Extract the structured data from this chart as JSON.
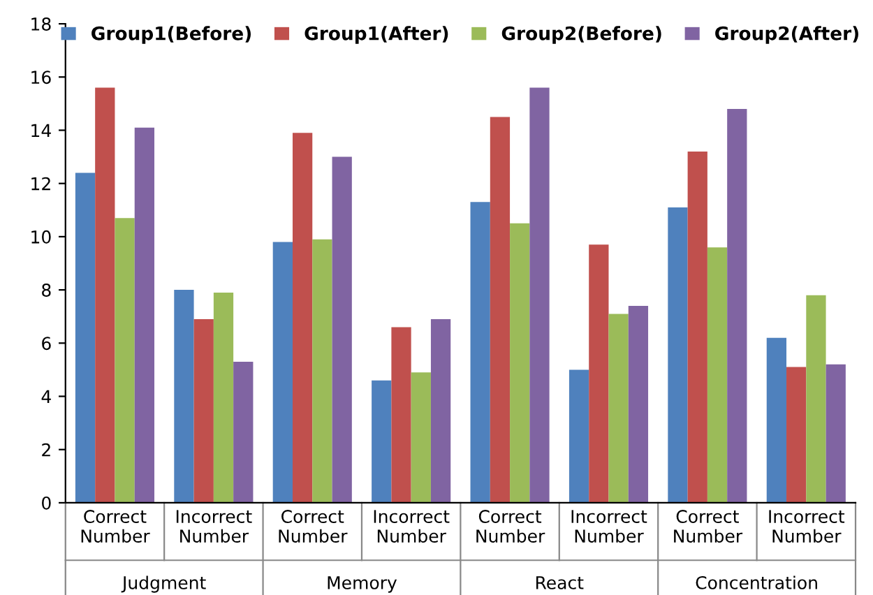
{
  "chart_data": {
    "type": "bar",
    "categories": [
      "Correct\nNumber",
      "Incorrect\nNumber",
      "Correct\nNumber",
      "Incorrect\nNumber",
      "Correct\nNumber",
      "Incorrect\nNumber",
      "Correct\nNumber",
      "Incorrect\nNumber"
    ],
    "annotations": [
      "Judgment",
      "Memory",
      "React",
      "Concentration"
    ],
    "series": [
      {
        "name": "Group1(Before)",
        "color": "#4f81bd",
        "values": [
          12.4,
          8.0,
          9.8,
          4.6,
          11.3,
          5.0,
          11.1,
          6.2
        ]
      },
      {
        "name": "Group1(After)",
        "color": "#c0504d",
        "values": [
          15.6,
          6.9,
          13.9,
          6.6,
          14.5,
          9.7,
          13.2,
          5.1
        ]
      },
      {
        "name": "Group2(Before)",
        "color": "#9bbb59",
        "values": [
          10.7,
          7.9,
          9.9,
          4.9,
          10.5,
          7.1,
          9.6,
          7.8
        ]
      },
      {
        "name": "Group2(After)",
        "color": "#8064a2",
        "values": [
          14.1,
          5.3,
          13.0,
          6.9,
          15.6,
          7.4,
          14.8,
          5.2
        ]
      }
    ],
    "ylim": [
      0,
      18
    ],
    "yticks": [
      0,
      2,
      4,
      6,
      8,
      10,
      12,
      14,
      16,
      18
    ],
    "grid": false,
    "legend": "top"
  }
}
